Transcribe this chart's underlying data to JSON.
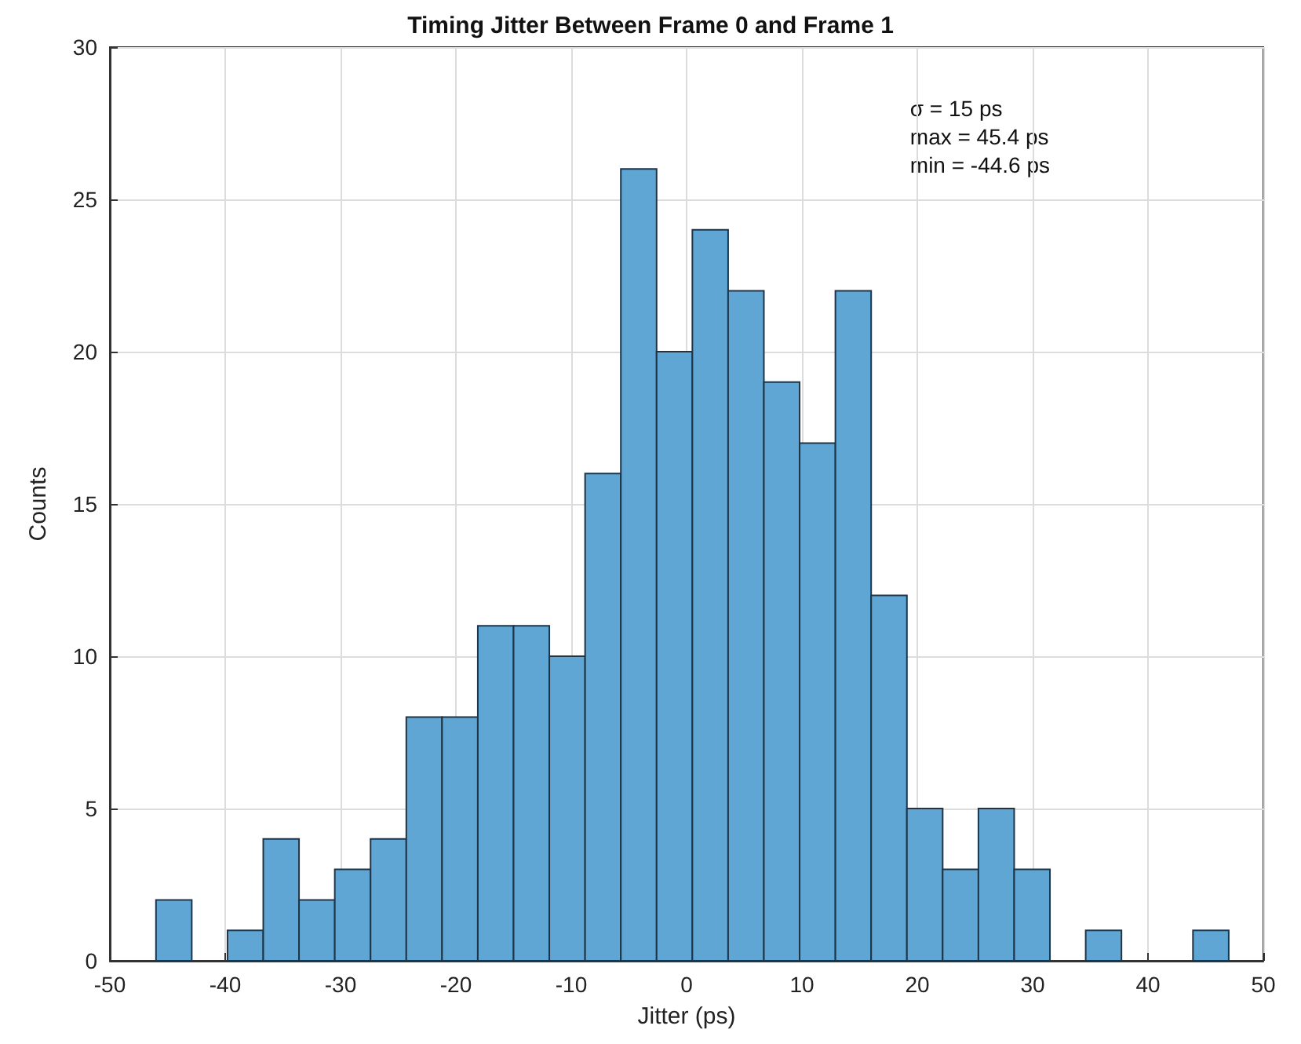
{
  "chart_data": {
    "type": "histogram",
    "title": "Timing Jitter Between Frame 0 and Frame 1",
    "xlabel": "Jitter (ps)",
    "ylabel": "Counts",
    "bins": [
      -46,
      -42.9,
      -39.8,
      -36.7,
      -33.6,
      -30.5,
      -27.4,
      -24.3,
      -21.2,
      -18.1,
      -15,
      -11.9,
      -8.8,
      -5.7,
      -2.6,
      0.5,
      3.6,
      6.7,
      9.8,
      12.9,
      16,
      19.1,
      22.2,
      25.3,
      28.4,
      31.5,
      34.6,
      37.7,
      40.8,
      43.9,
      47
    ],
    "values": [
      2,
      0,
      1,
      4,
      2,
      3,
      4,
      8,
      8,
      11,
      11,
      10,
      16,
      26,
      20,
      24,
      22,
      19,
      17,
      22,
      12,
      5,
      3,
      5,
      3,
      0,
      1,
      0,
      0,
      1
    ],
    "color": "#5fa6d5",
    "xlim": [
      -50,
      50
    ],
    "xticks": [
      -50,
      -40,
      -30,
      -20,
      -10,
      0,
      10,
      20,
      30,
      40,
      50
    ],
    "ylim": [
      0,
      30
    ],
    "yticks": [
      0,
      5,
      10,
      15,
      20,
      25,
      30
    ],
    "grid": true,
    "annotations": [
      "σ = 15 ps\nmax = 45.4 ps\nmin = -44.6 ps"
    ]
  }
}
